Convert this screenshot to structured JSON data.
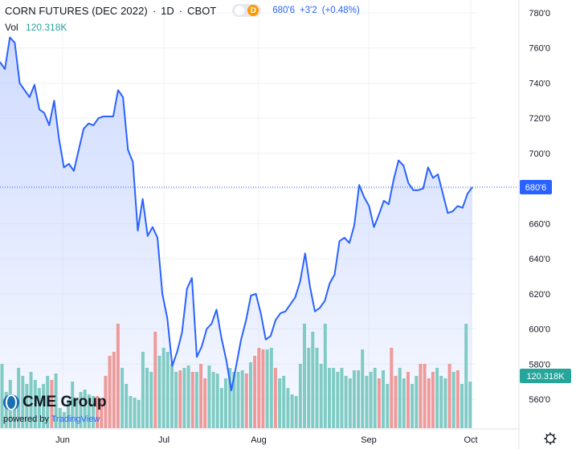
{
  "header": {
    "symbol_title": "CORN FUTURES (DEC 2022)",
    "interval": "1D",
    "exchange": "CBOT",
    "d_badge": "D",
    "last_price": "680'6",
    "change": "+3'2",
    "change_pct": "(+0.48%)"
  },
  "volume_legend": {
    "label": "Vol",
    "value": "120.318K"
  },
  "price_tag": "680'6",
  "volume_tag": "120.318K",
  "branding": {
    "cme": "CME Group",
    "powered_by": "powered by",
    "tradingview": "TradingView"
  },
  "colors": {
    "line": "#2962ff",
    "area": "#dbe5ff",
    "volume_up": "#80cbc4",
    "volume_down": "#ef9a9a",
    "grid": "#eef0f3",
    "axis_text": "#131722"
  },
  "chart_data": {
    "type": "line",
    "title": "CORN FUTURES (DEC 2022)",
    "x_labels": [
      "Jun",
      "Jul",
      "Aug",
      "Sep",
      "Oct"
    ],
    "y_ticks": [
      "780'0",
      "760'0",
      "740'0",
      "720'0",
      "700'0",
      "680'0",
      "660'0",
      "640'0",
      "620'0",
      "600'0",
      "580'0",
      "560'0"
    ],
    "ylim": [
      550,
      787
    ],
    "y_scale": "linear",
    "grid": true,
    "last_value": 680.75,
    "series": [
      {
        "values": [
          752,
          748,
          766,
          763,
          740,
          736,
          732,
          739,
          725,
          723,
          716,
          730,
          708,
          692,
          694,
          690,
          702,
          714,
          717,
          716,
          720,
          721,
          721,
          721,
          736,
          732,
          702,
          695,
          656,
          674,
          653,
          658,
          652,
          620,
          606,
          579,
          587,
          598,
          623,
          629,
          584,
          590,
          600,
          603,
          611,
          595,
          582,
          565,
          579,
          594,
          605,
          619,
          620,
          609,
          594,
          596,
          605,
          609,
          610,
          614,
          618,
          627,
          643,
          624,
          610,
          612,
          616,
          626,
          631,
          650,
          652,
          649,
          659,
          682,
          675,
          670,
          658,
          665,
          673,
          671,
          685,
          696,
          693,
          683,
          679,
          679,
          680,
          692,
          686,
          688,
          677,
          666,
          667,
          670,
          669,
          677,
          680.75
        ]
      }
    ],
    "volume": {
      "values": [
        80,
        45,
        60,
        40,
        75,
        65,
        55,
        70,
        60,
        50,
        55,
        65,
        60,
        68,
        25,
        20,
        35,
        58,
        38,
        45,
        48,
        42,
        40,
        40,
        35,
        65,
        90,
        95,
        130,
        75,
        55,
        40,
        38,
        35,
        95,
        75,
        70,
        120,
        90,
        100,
        95,
        80,
        70,
        72,
        75,
        78,
        70,
        70,
        80,
        62,
        78,
        70,
        68,
        50,
        62,
        75,
        70,
        70,
        72,
        68,
        82,
        90,
        100,
        98,
        98,
        100,
        75,
        62,
        65,
        50,
        42,
        40,
        80,
        130,
        100,
        120,
        100,
        80,
        130,
        75,
        75,
        70,
        75,
        65,
        62,
        72,
        72,
        98,
        65,
        70,
        75,
        62,
        72,
        55,
        100,
        65,
        75,
        62,
        70,
        55,
        65,
        80,
        80,
        62,
        70,
        75,
        65,
        62,
        80,
        70,
        72,
        55,
        130,
        58
      ],
      "up": [
        true,
        true,
        true,
        true,
        true,
        true,
        true,
        true,
        true,
        true,
        true,
        true,
        false,
        true,
        true,
        true,
        true,
        true,
        true,
        true,
        true,
        true,
        true,
        false,
        false,
        false,
        false,
        false,
        false,
        true,
        true,
        true,
        true,
        true,
        true,
        true,
        true,
        false,
        true,
        true,
        true,
        true,
        true,
        false,
        true,
        true,
        false,
        true,
        false,
        false,
        true,
        true,
        true,
        true,
        true,
        true,
        true,
        true,
        true,
        false,
        true,
        false,
        false,
        false,
        true,
        true,
        false,
        true,
        true,
        true,
        true,
        true,
        true,
        true,
        true,
        true,
        true,
        true,
        true,
        true,
        true,
        true,
        true,
        true,
        true,
        true,
        true,
        true,
        true,
        true,
        true,
        false,
        true,
        true,
        false,
        false,
        true,
        true,
        false,
        true,
        true,
        false,
        false,
        false,
        false,
        true,
        true,
        true,
        false,
        true,
        false,
        true,
        true,
        true
      ]
    }
  }
}
